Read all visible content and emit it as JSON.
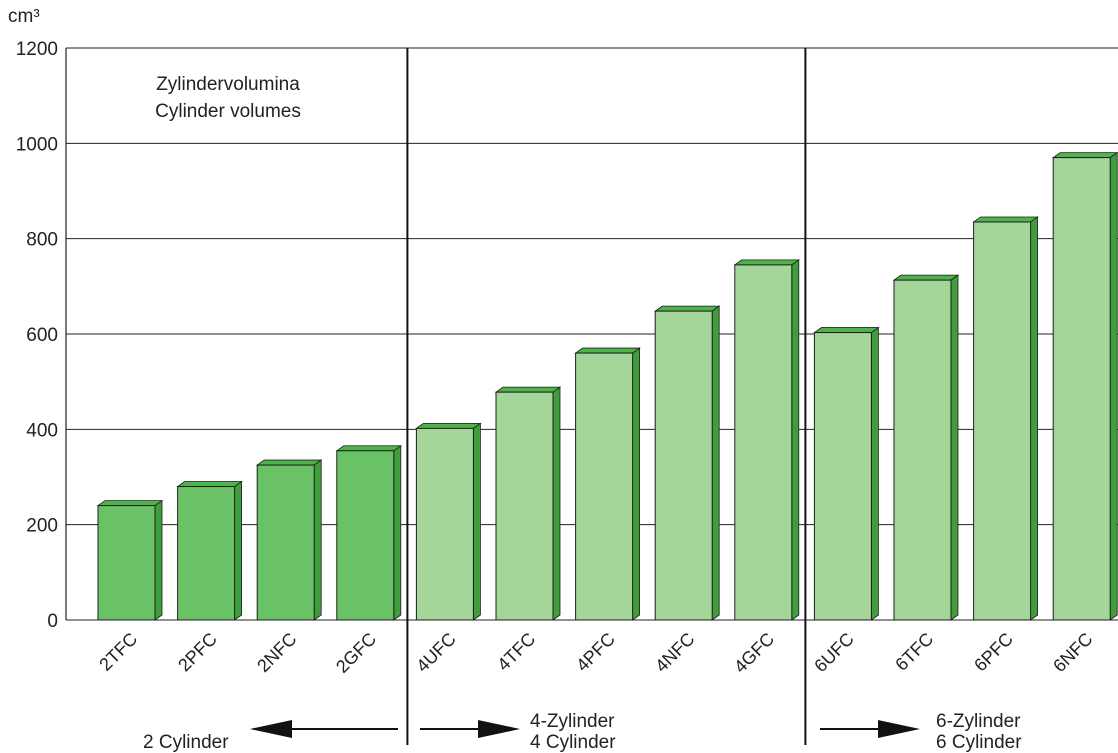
{
  "chart_data": {
    "type": "bar",
    "title_lines": [
      "Zylindervolumina",
      "Cylinder volumes"
    ],
    "ylabel": "cm³",
    "ylim": [
      0,
      1200
    ],
    "yticks": [
      0,
      200,
      400,
      600,
      800,
      1000,
      1200
    ],
    "grid": true,
    "categories": [
      "2TFC",
      "2PFC",
      "2NFC",
      "2GFC",
      "4UFC",
      "4TFC",
      "4PFC",
      "4NFC",
      "4GFC",
      "6UFC",
      "6TFC",
      "6PFC",
      "6NFC"
    ],
    "values": [
      240,
      280,
      325,
      355,
      402,
      478,
      560,
      648,
      745,
      603,
      713,
      835,
      970
    ],
    "groups": [
      {
        "key": "two",
        "lines": [
          "2 Cylinder"
        ],
        "count": 4,
        "arrow": "left",
        "color": "#6ac266"
      },
      {
        "key": "four",
        "lines": [
          "4-Zylinder",
          "4 Cylinder"
        ],
        "count": 5,
        "arrow": "right",
        "color": "#a4d69a"
      },
      {
        "key": "six",
        "lines": [
          "6-Zylinder",
          "6 Cylinder"
        ],
        "count": 4,
        "arrow": "right",
        "color": "#a4d69a"
      }
    ],
    "colors": {
      "top": "#4fb24a",
      "side": "#3f9e3b",
      "stroke": "#1e1e1e",
      "grid": "#222222"
    }
  }
}
